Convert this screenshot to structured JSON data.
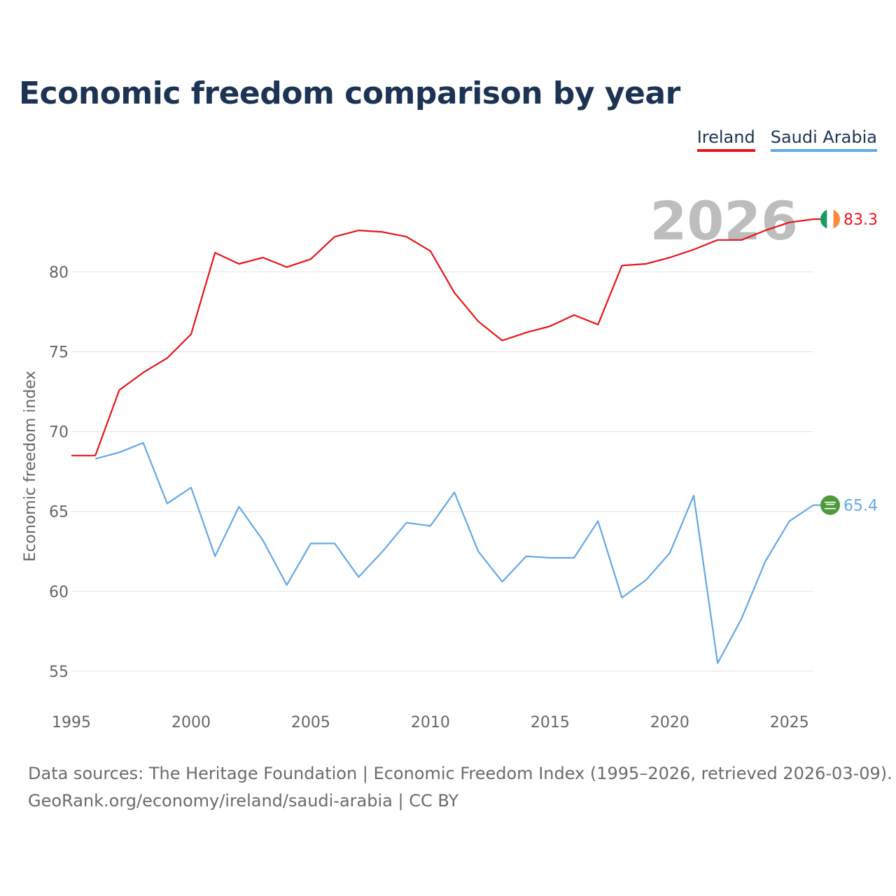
{
  "chart_data": {
    "type": "line",
    "title": "Economic freedom comparison by year",
    "xlabel": "",
    "ylabel": "Economic freedom index",
    "xlim": [
      1995,
      2026
    ],
    "ylim": [
      53.2,
      84.4
    ],
    "xticks": [
      1995,
      2000,
      2005,
      2010,
      2015,
      2020,
      2025
    ],
    "yticks": [
      55,
      60,
      65,
      70,
      75,
      80
    ],
    "year_label": "2026",
    "series": [
      {
        "name": "Ireland",
        "color": "#e8141a",
        "end_label": "83.3",
        "flag_icon": "ireland-flag-icon",
        "x": [
          1995,
          1996,
          1997,
          1998,
          1999,
          2000,
          2001,
          2002,
          2003,
          2004,
          2005,
          2006,
          2007,
          2008,
          2009,
          2010,
          2011,
          2012,
          2013,
          2014,
          2015,
          2016,
          2017,
          2018,
          2019,
          2020,
          2021,
          2022,
          2023,
          2024,
          2025,
          2026
        ],
        "values": [
          68.5,
          68.5,
          72.6,
          73.7,
          74.6,
          76.1,
          81.2,
          80.5,
          80.9,
          80.3,
          80.8,
          82.2,
          82.6,
          82.5,
          82.2,
          81.3,
          78.7,
          76.9,
          75.7,
          76.2,
          76.6,
          77.3,
          76.7,
          80.4,
          80.5,
          80.9,
          81.4,
          82.0,
          82.0,
          82.6,
          83.1,
          83.3
        ]
      },
      {
        "name": "Saudi Arabia",
        "color": "#64a8e5",
        "end_label": "65.4",
        "flag_icon": "saudi-arabia-flag-icon",
        "x": [
          1996,
          1997,
          1998,
          1999,
          2000,
          2001,
          2002,
          2003,
          2004,
          2005,
          2006,
          2007,
          2008,
          2009,
          2010,
          2011,
          2012,
          2013,
          2014,
          2015,
          2016,
          2017,
          2018,
          2019,
          2020,
          2021,
          2022,
          2023,
          2024,
          2025,
          2026
        ],
        "values": [
          68.3,
          68.7,
          69.3,
          65.5,
          66.5,
          62.2,
          65.3,
          63.2,
          60.4,
          63.0,
          63.0,
          60.9,
          62.5,
          64.3,
          64.1,
          66.2,
          62.5,
          60.6,
          62.2,
          62.1,
          62.1,
          64.4,
          59.6,
          60.7,
          62.4,
          66.0,
          55.5,
          58.3,
          61.9,
          64.4,
          65.4
        ]
      }
    ]
  },
  "sources": {
    "line1": "Data sources: The Heritage Foundation | Economic Freedom Index (1995–2026, retrieved 2026-03-09).",
    "line2": "GeoRank.org/economy/ireland/saudi-arabia | CC BY"
  }
}
